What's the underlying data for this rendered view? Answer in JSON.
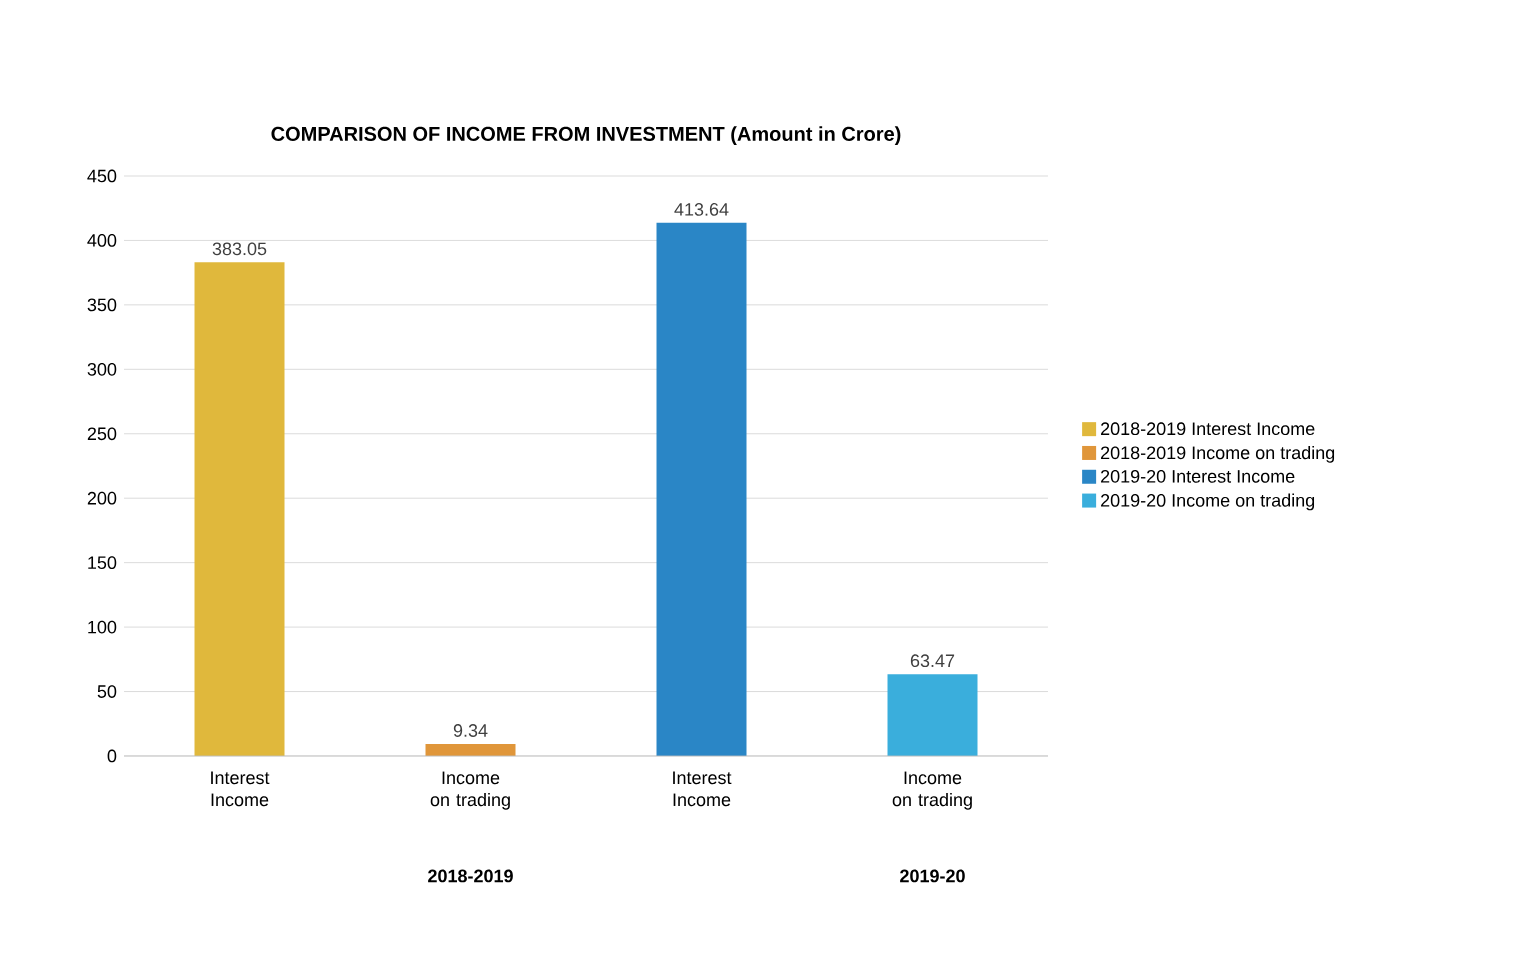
{
  "chart_data": {
    "type": "bar",
    "title": "COMPARISON OF INCOME FROM INVESTMENT (Amount in Crore)",
    "categories": [
      "Interest Income",
      "Income on trading",
      "Interest Income",
      "Income on trading"
    ],
    "series": [
      {
        "name": "2018-2019 Interest Income",
        "color": "#e0b83c",
        "values": [
          383.05,
          null,
          null,
          null
        ]
      },
      {
        "name": "2018-2019 Income on trading",
        "color": "#e0963a",
        "values": [
          null,
          9.34,
          null,
          null
        ]
      },
      {
        "name": "2019-20 Interest Income",
        "color": "#2a86c6",
        "values": [
          null,
          null,
          413.64,
          null
        ]
      },
      {
        "name": "2019-20 Income on trading",
        "color": "#3aaedc",
        "values": [
          null,
          null,
          null,
          63.47
        ]
      }
    ],
    "annotations": [
      "2018-2019",
      "2019-20"
    ],
    "ylim": [
      0,
      450
    ],
    "yticks": [
      0,
      50,
      100,
      150,
      200,
      250,
      300,
      350,
      400,
      450
    ],
    "grid": "y",
    "legend": "right",
    "data_labels": true
  }
}
